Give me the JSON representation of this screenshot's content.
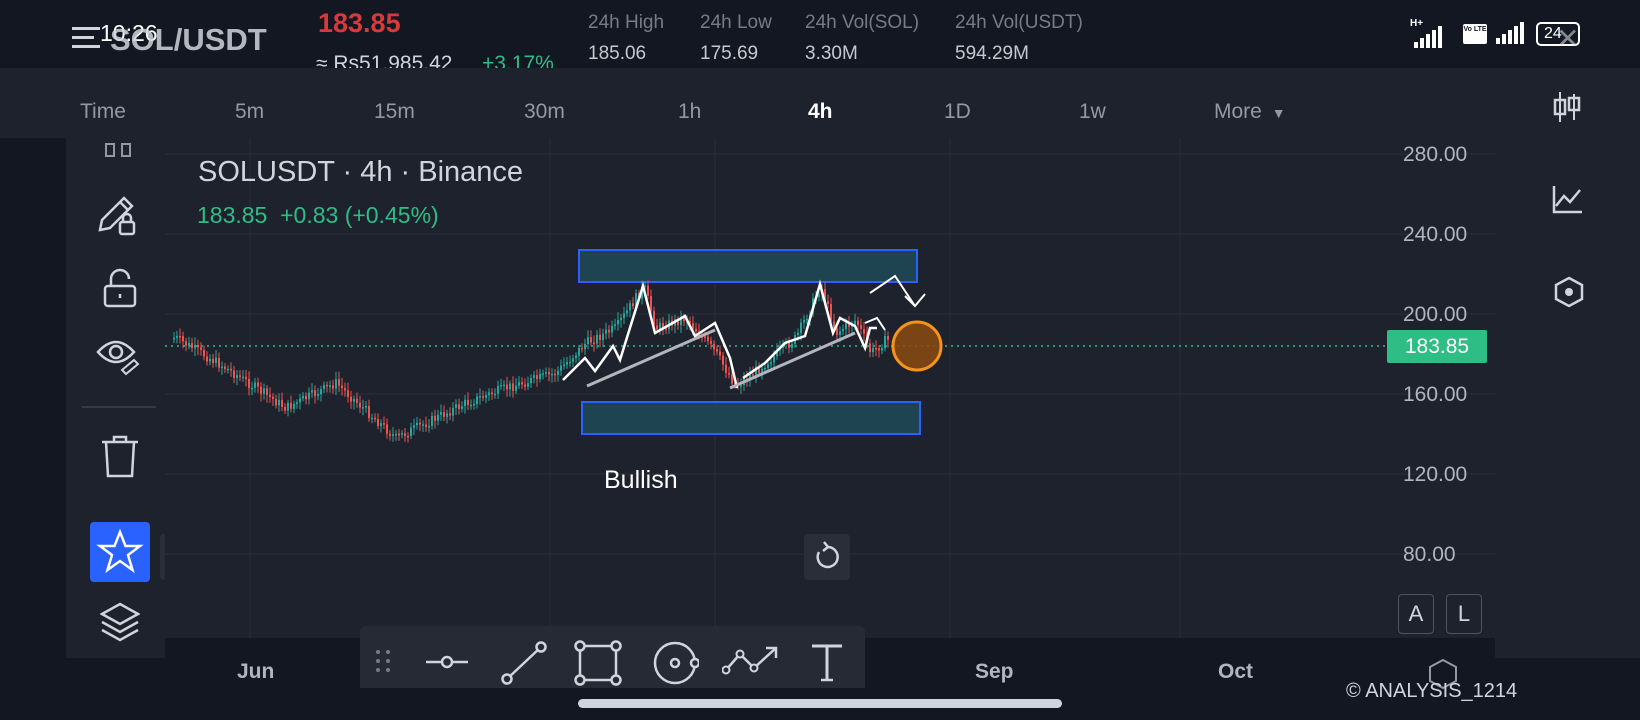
{
  "status_bar": {
    "time": "10:26",
    "network": "H+",
    "volte": "Vo LTE",
    "battery": "24"
  },
  "header": {
    "symbol": "SOL/USDT",
    "last_price": "183.85",
    "fiat_price": "≈ Rs51,985.42",
    "change_pct": "+3.17%",
    "stats": [
      {
        "label": "24h High",
        "value": "185.06"
      },
      {
        "label": "24h Low",
        "value": "175.69"
      },
      {
        "label": "24h Vol(SOL)",
        "value": "3.30M"
      },
      {
        "label": "24h Vol(USDT)",
        "value": "594.29M"
      }
    ]
  },
  "timeframes": {
    "items": [
      "Time",
      "5m",
      "15m",
      "30m",
      "1h",
      "4h",
      "1D",
      "1w",
      "More"
    ],
    "active": "4h"
  },
  "chart": {
    "title": "SOLUSDT · 4h · Binance",
    "quote_line": "183.85  +0.83 (+0.45%)",
    "price_ticks": [
      "280.00",
      "240.00",
      "200.00",
      "160.00",
      "120.00",
      "80.00"
    ],
    "current_price_tag": "183.85",
    "date_ticks": [
      "Jun",
      "Sep",
      "Oct"
    ],
    "annotation": "Bullish",
    "scale_buttons": {
      "auto": "A",
      "log": "L"
    },
    "colors": {
      "up": "#26a69a",
      "down": "#ef5350",
      "accent": "#2962ff",
      "price_tag": "#2ebd85",
      "zone": "#1f4f5e",
      "marker": "#f7931a"
    }
  },
  "watermark": "© ANALYSIS_1214",
  "icons": {
    "left": [
      "hamburger-icon",
      "pencil-lock-icon",
      "unlock-icon",
      "eye-icon",
      "trash-icon",
      "star-icon",
      "tradingview-logo",
      "layers-icon"
    ],
    "right": [
      "candles-icon",
      "indicator-icon",
      "settings-hex-icon"
    ],
    "drawbar": [
      "grip-icon",
      "horizontal-line-icon",
      "trend-line-icon",
      "rectangle-icon",
      "circle-icon",
      "path-icon",
      "text-icon"
    ]
  }
}
